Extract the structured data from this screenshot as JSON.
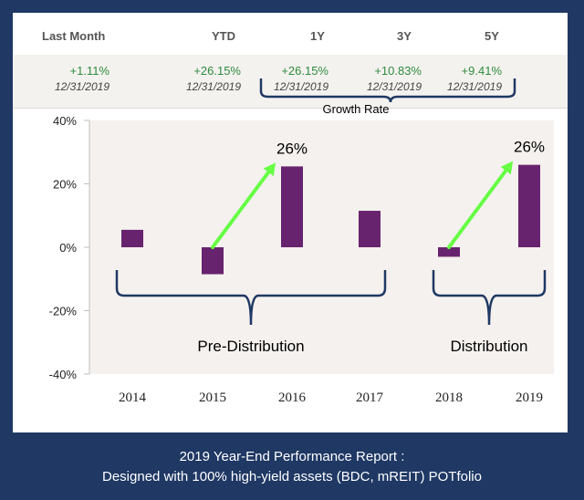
{
  "table": {
    "columns": [
      {
        "header": "Last Month",
        "value": "+1.11%",
        "date": "12/31/2019"
      },
      {
        "header": "YTD",
        "value": "+26.15%",
        "date": "12/31/2019"
      },
      {
        "header": "1Y",
        "value": "+26.15%",
        "date": "12/31/2019"
      },
      {
        "header": "3Y",
        "value": "+10.83%",
        "date": "12/31/2019"
      },
      {
        "header": "5Y",
        "value": "+9.41%",
        "date": "12/31/2019"
      }
    ],
    "growth_label": "Growth Rate"
  },
  "chart_data": {
    "type": "bar",
    "categories": [
      "2014",
      "2015",
      "2016",
      "2017",
      "2018",
      "2019"
    ],
    "values": [
      5.5,
      -8.5,
      25.5,
      11.5,
      -3,
      26
    ],
    "ylim": [
      -40,
      40
    ],
    "yticks": [
      -40,
      -20,
      0,
      20,
      40
    ],
    "ytick_labels": [
      "-40%",
      "-20%",
      "0%",
      "20%",
      "40%"
    ],
    "bar_color": "#68236f",
    "arrow_color": "#66ff44",
    "annotations": [
      {
        "text": "26%",
        "from": "2015",
        "to": "2016"
      },
      {
        "text": "26%",
        "from": "2018",
        "to": "2019"
      }
    ],
    "groups": [
      {
        "label": "Pre-Distribution",
        "start": "2014",
        "end": "2017"
      },
      {
        "label": "Distribution",
        "start": "2018",
        "end": "2019"
      }
    ]
  },
  "caption": {
    "line1": "2019 Year-End Performance Report :",
    "line2": "Designed with 100% high-yield assets (BDC, mREIT) POTfolio"
  }
}
